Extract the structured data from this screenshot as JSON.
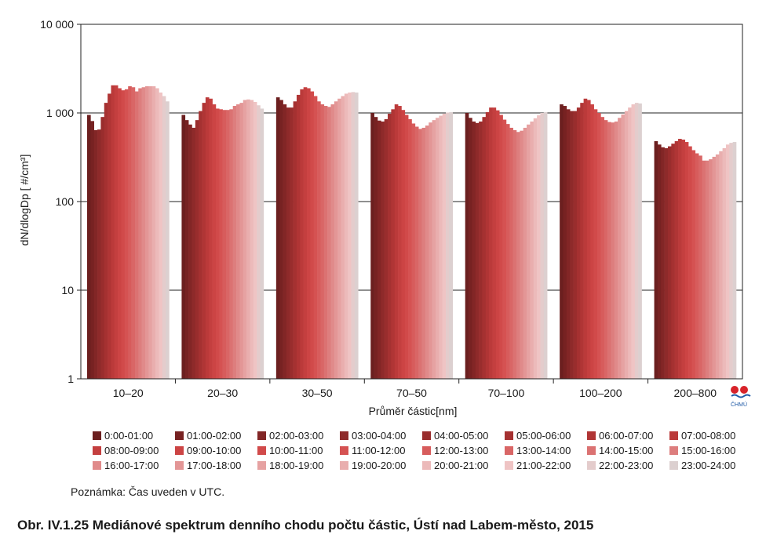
{
  "chart_data": {
    "type": "bar",
    "ylabel": "dN/dlogDp [ #/cm³]",
    "xlabel": "Průměr částic[nm]",
    "y_scale": "log",
    "ylim": [
      1,
      10000
    ],
    "y_tick_labels": [
      "1",
      "10",
      "100",
      "1 000",
      "10 000"
    ],
    "y_tick_values": [
      1,
      10,
      100,
      1000,
      10000
    ],
    "grid": "horizontal major lines",
    "categories": [
      "10–20",
      "20–30",
      "30–50",
      "70–50",
      "70–100",
      "100–200",
      "200–800"
    ],
    "series_names": [
      "0:00-01:00",
      "01:00-02:00",
      "02:00-03:00",
      "03:00-04:00",
      "04:00-05:00",
      "05:00-06:00",
      "06:00-07:00",
      "07:00-08:00",
      "08:00-09:00",
      "09:00-10:00",
      "10:00-11:00",
      "11:00-12:00",
      "12:00-13:00",
      "13:00-14:00",
      "14:00-15:00",
      "15:00-16:00",
      "16:00-17:00",
      "17:00-18:00",
      "18:00-19:00",
      "19:00-20:00",
      "20:00-21:00",
      "21:00-22:00",
      "22:00-23:00",
      "23:00-24:00"
    ],
    "series_colors": [
      "#6b1f1f",
      "#772222",
      "#822626",
      "#8e2a2a",
      "#992d2d",
      "#a53131",
      "#b03535",
      "#bb3a3a",
      "#c43f3f",
      "#cc4444",
      "#d14a4a",
      "#d55252",
      "#d75c5c",
      "#d96666",
      "#db7272",
      "#dd7e7e",
      "#e08a8a",
      "#e39696",
      "#e6a2a2",
      "#e9aeae",
      "#ecbaba",
      "#efc4c4",
      "#e4cccc",
      "#dcd0d0"
    ],
    "values_by_category": [
      [
        950,
        810,
        640,
        650,
        900,
        1300,
        1650,
        2050,
        2050,
        1900,
        1800,
        1850,
        2000,
        1950,
        1750,
        1900,
        1950,
        2000,
        2000,
        2000,
        1900,
        1700,
        1550,
        1350
      ],
      [
        950,
        830,
        740,
        680,
        830,
        1050,
        1300,
        1500,
        1450,
        1250,
        1120,
        1100,
        1080,
        1080,
        1100,
        1200,
        1250,
        1300,
        1400,
        1420,
        1400,
        1330,
        1220,
        1120
      ],
      [
        1500,
        1400,
        1250,
        1150,
        1150,
        1350,
        1600,
        1850,
        1950,
        1900,
        1750,
        1550,
        1350,
        1250,
        1200,
        1170,
        1250,
        1350,
        1450,
        1550,
        1650,
        1700,
        1720,
        1700
      ],
      [
        1000,
        900,
        820,
        800,
        850,
        980,
        1100,
        1250,
        1200,
        1080,
        950,
        850,
        760,
        700,
        660,
        680,
        720,
        780,
        830,
        880,
        930,
        980,
        1010,
        1020
      ],
      [
        1000,
        880,
        800,
        770,
        800,
        900,
        1020,
        1150,
        1150,
        1070,
        950,
        840,
        750,
        680,
        640,
        610,
        630,
        680,
        740,
        800,
        870,
        940,
        1000,
        1020
      ],
      [
        1250,
        1200,
        1100,
        1050,
        1050,
        1150,
        1300,
        1450,
        1400,
        1250,
        1100,
        1000,
        900,
        830,
        790,
        780,
        800,
        880,
        960,
        1050,
        1150,
        1250,
        1300,
        1280
      ],
      [
        480,
        440,
        410,
        400,
        420,
        450,
        480,
        510,
        500,
        470,
        420,
        380,
        350,
        330,
        290,
        290,
        300,
        320,
        340,
        370,
        400,
        440,
        460,
        470
      ]
    ]
  },
  "note": "Poznámka: Čas uveden v UTC.",
  "caption": "Obr. IV.1.25  Mediánové spektrum denního chodu počtu částic, Ústí nad Labem-město, 2015",
  "logo": {
    "text": "ČHMÚ",
    "colors": [
      "#d8232a",
      "#1f5aa6"
    ]
  }
}
